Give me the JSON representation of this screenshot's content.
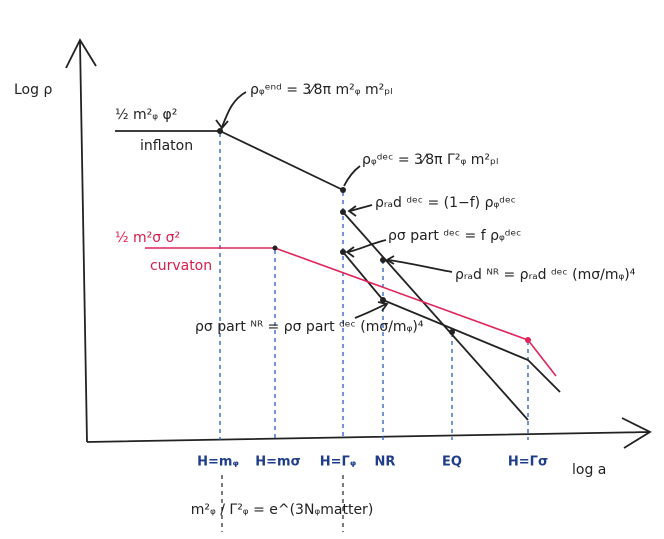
{
  "axes": {
    "y_label": "Log ρ",
    "x_label": "log a"
  },
  "x_ticks": [
    "H=mᵩ",
    "H=mσ",
    "H=Γᵩ",
    "NR",
    "EQ",
    "H=Γσ"
  ],
  "curves": {
    "inflaton_potential": "½ m²ᵩ φ²",
    "inflaton": "inflaton",
    "curvaton_potential": "½ m²σ σ²",
    "curvaton": "curvaton"
  },
  "annotations": {
    "end": "ρᵩᵉⁿᵈ = 3⁄8π m²ᵩ m²ₚₗ",
    "dec": "ρᵩᵈᵉᶜ = 3⁄8π Γ²ᵩ m²ₚₗ",
    "rad_dec": "ρᵣₐd ᵈᵉᶜ = (1−f) ρᵩᵈᵉᶜ",
    "part_dec": "ρσ part ᵈᵉᶜ = f ρᵩᵈᵉᶜ",
    "rad_nr": "ρᵣₐd ᴺᴿ = ρᵣₐd ᵈᵉᶜ (mσ/mᵩ)⁴",
    "part_nr": "ρσ part ᴺᴿ = ρσ part ᵈᵉᶜ (mσ/mᵩ)⁴"
  },
  "bottom_equation": "m²ᵩ / Γ²ᵩ = e^(3Nᵩmatter)"
}
